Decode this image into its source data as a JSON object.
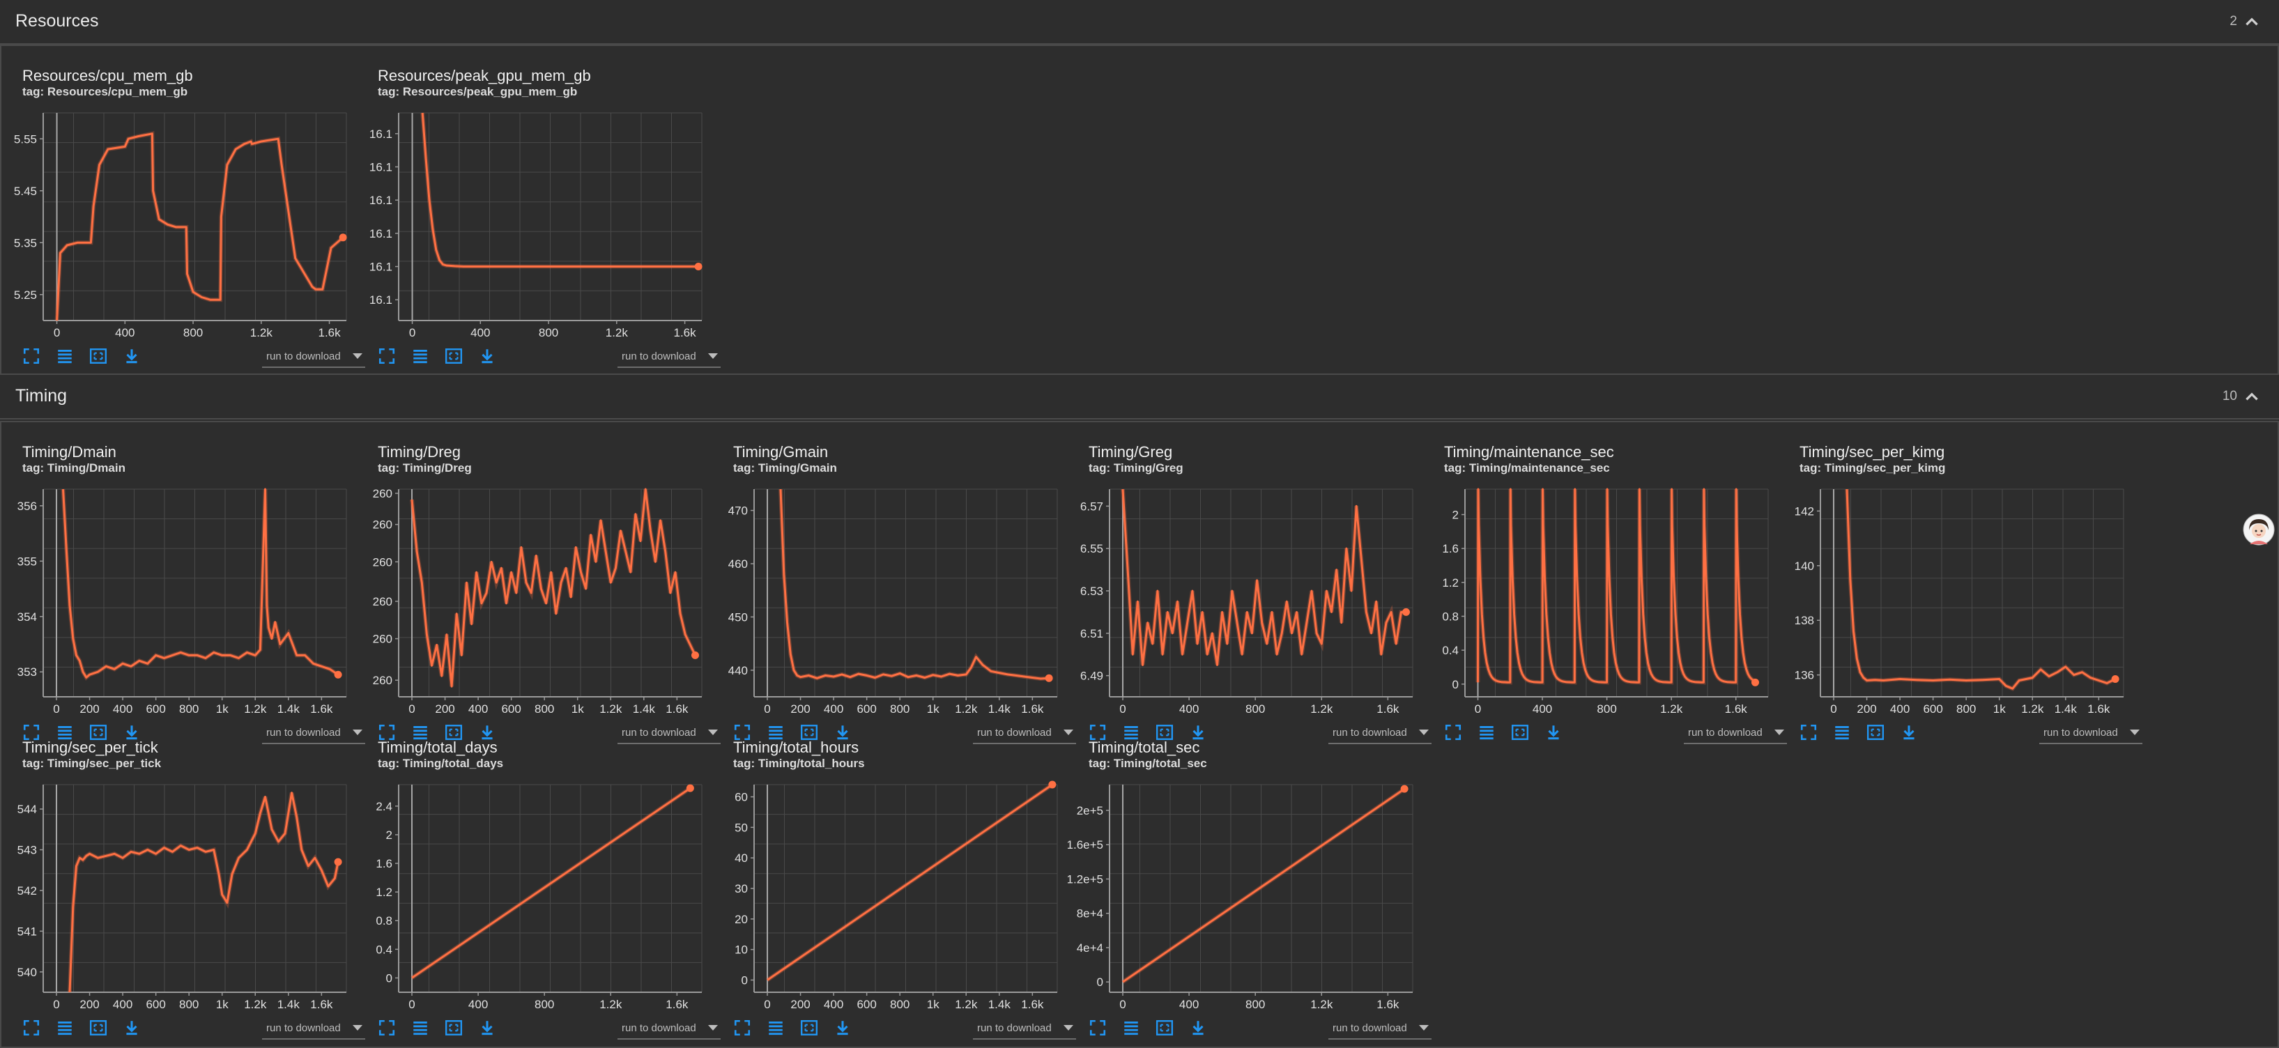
{
  "accent_color": "#ff7043",
  "icon_color": "#2196f3",
  "sections": [
    {
      "title": "Resources",
      "count": "2",
      "toggle_icon": "chevron-up-icon"
    },
    {
      "title": "Timing",
      "count": "10",
      "toggle_icon": "chevron-up-icon"
    }
  ],
  "card_controls": {
    "icons": [
      "fullscreen-icon",
      "list-icon",
      "fit-domain-icon",
      "download-icon"
    ],
    "download_placeholder": "run to download"
  },
  "cards": [
    {
      "title": "Resources/cpu_mem_gb",
      "tag": "tag: Resources/cpu_mem_gb"
    },
    {
      "title": "Resources/peak_gpu_mem_gb",
      "tag": "tag: Resources/peak_gpu_mem_gb"
    },
    {
      "title": "Timing/Dmain",
      "tag": "tag: Timing/Dmain"
    },
    {
      "title": "Timing/Dreg",
      "tag": "tag: Timing/Dreg"
    },
    {
      "title": "Timing/Gmain",
      "tag": "tag: Timing/Gmain"
    },
    {
      "title": "Timing/Greg",
      "tag": "tag: Timing/Greg"
    },
    {
      "title": "Timing/maintenance_sec",
      "tag": "tag: Timing/maintenance_sec"
    },
    {
      "title": "Timing/sec_per_kimg",
      "tag": "tag: Timing/sec_per_kimg"
    },
    {
      "title": "Timing/sec_per_tick",
      "tag": "tag: Timing/sec_per_tick"
    },
    {
      "title": "Timing/total_days",
      "tag": "tag: Timing/total_days"
    },
    {
      "title": "Timing/total_hours",
      "tag": "tag: Timing/total_hours"
    },
    {
      "title": "Timing/total_sec",
      "tag": "tag: Timing/total_sec"
    }
  ],
  "chart_data": [
    {
      "type": "line",
      "name": "Resources/cpu_mem_gb",
      "xlim": [
        -80,
        1700
      ],
      "ylim": [
        5.2,
        5.6
      ],
      "xticks": [
        "0",
        "400",
        "800",
        "1.2k",
        "1.6k"
      ],
      "xtick_values": [
        0,
        400,
        800,
        1200,
        1600
      ],
      "yticks": [
        "5.25",
        "5.35",
        "5.45",
        "5.55"
      ],
      "ytick_values": [
        5.25,
        5.35,
        5.45,
        5.55
      ],
      "x": [
        0,
        20,
        60,
        120,
        200,
        215,
        250,
        300,
        400,
        420,
        480,
        560,
        565,
        600,
        650,
        700,
        760,
        765,
        800,
        850,
        900,
        960,
        965,
        1000,
        1050,
        1100,
        1140,
        1145,
        1200,
        1260,
        1300,
        1320,
        1400,
        1500,
        1520,
        1560,
        1610,
        1680
      ],
      "y": [
        5.2,
        5.33,
        5.345,
        5.35,
        5.35,
        5.42,
        5.5,
        5.53,
        5.535,
        5.55,
        5.555,
        5.56,
        5.45,
        5.395,
        5.385,
        5.38,
        5.38,
        5.29,
        5.255,
        5.245,
        5.24,
        5.24,
        5.4,
        5.5,
        5.53,
        5.54,
        5.545,
        5.54,
        5.545,
        5.548,
        5.55,
        5.5,
        5.32,
        5.265,
        5.26,
        5.26,
        5.34,
        5.36
      ]
    },
    {
      "type": "line",
      "name": "Resources/peak_gpu_mem_gb",
      "xlim": [
        -80,
        1700
      ],
      "ylim": [
        0,
        1
      ],
      "xticks": [
        "0",
        "400",
        "800",
        "1.2k",
        "1.6k"
      ],
      "xtick_values": [
        0,
        400,
        800,
        1200,
        1600
      ],
      "yticks": [
        "16.1",
        "16.1",
        "16.1",
        "16.1",
        "16.1",
        "16.1"
      ],
      "ytick_values": [
        0.1,
        0.26,
        0.42,
        0.58,
        0.74,
        0.9
      ],
      "x": [
        60,
        80,
        100,
        120,
        140,
        160,
        180,
        200,
        250,
        300,
        400,
        800,
        1200,
        1600,
        1680
      ],
      "y": [
        1.0,
        0.78,
        0.58,
        0.44,
        0.34,
        0.29,
        0.27,
        0.265,
        0.262,
        0.26,
        0.26,
        0.26,
        0.26,
        0.26,
        0.26
      ]
    },
    {
      "type": "line",
      "name": "Timing/Dmain",
      "xlim": [
        -80,
        1750
      ],
      "ylim": [
        352.55,
        356.3
      ],
      "xticks": [
        "0",
        "200",
        "400",
        "600",
        "800",
        "1k",
        "1.2k",
        "1.4k",
        "1.6k"
      ],
      "xtick_values": [
        0,
        200,
        400,
        600,
        800,
        1000,
        1200,
        1400,
        1600
      ],
      "yticks": [
        "353",
        "354",
        "355",
        "356"
      ],
      "ytick_values": [
        353,
        354,
        355,
        356
      ],
      "x": [
        40,
        60,
        80,
        100,
        120,
        140,
        160,
        180,
        200,
        250,
        300,
        350,
        400,
        450,
        500,
        550,
        600,
        650,
        700,
        750,
        800,
        850,
        900,
        950,
        1000,
        1050,
        1100,
        1150,
        1200,
        1230,
        1260,
        1270,
        1280,
        1300,
        1320,
        1350,
        1400,
        1450,
        1500,
        1550,
        1600,
        1650,
        1700
      ],
      "y": [
        356.3,
        355.2,
        354.2,
        353.6,
        353.3,
        353.2,
        353.0,
        352.9,
        352.95,
        353.0,
        353.1,
        353.05,
        353.15,
        353.1,
        353.2,
        353.15,
        353.3,
        353.25,
        353.3,
        353.35,
        353.3,
        353.3,
        353.25,
        353.35,
        353.3,
        353.3,
        353.25,
        353.35,
        353.3,
        353.4,
        356.3,
        354.2,
        353.8,
        353.6,
        353.9,
        353.5,
        353.7,
        353.3,
        353.3,
        353.15,
        353.1,
        353.05,
        352.95
      ]
    },
    {
      "type": "line",
      "name": "Timing/Dreg",
      "xlim": [
        -80,
        1750
      ],
      "ylim": [
        0,
        1
      ],
      "xticks": [
        "0",
        "200",
        "400",
        "600",
        "800",
        "1k",
        "1.2k",
        "1.4k",
        "1.6k"
      ],
      "xtick_values": [
        0,
        200,
        400,
        600,
        800,
        1000,
        1200,
        1400,
        1600
      ],
      "yticks": [
        "260",
        "260",
        "260",
        "260",
        "260",
        "260"
      ],
      "ytick_values": [
        0.08,
        0.28,
        0.46,
        0.65,
        0.83,
        0.98
      ],
      "x": [
        0,
        30,
        60,
        90,
        120,
        150,
        180,
        210,
        240,
        270,
        300,
        330,
        360,
        390,
        420,
        450,
        480,
        510,
        540,
        570,
        600,
        630,
        660,
        690,
        720,
        750,
        780,
        810,
        840,
        870,
        900,
        930,
        960,
        990,
        1020,
        1050,
        1080,
        1110,
        1140,
        1170,
        1200,
        1230,
        1260,
        1290,
        1320,
        1350,
        1380,
        1410,
        1440,
        1470,
        1500,
        1530,
        1560,
        1590,
        1620,
        1650,
        1680,
        1710
      ],
      "y": [
        0.95,
        0.7,
        0.55,
        0.3,
        0.15,
        0.25,
        0.1,
        0.3,
        0.05,
        0.4,
        0.2,
        0.55,
        0.35,
        0.6,
        0.45,
        0.5,
        0.65,
        0.55,
        0.62,
        0.45,
        0.6,
        0.5,
        0.72,
        0.55,
        0.5,
        0.68,
        0.52,
        0.45,
        0.6,
        0.4,
        0.55,
        0.62,
        0.48,
        0.72,
        0.6,
        0.52,
        0.78,
        0.65,
        0.85,
        0.7,
        0.55,
        0.62,
        0.8,
        0.7,
        0.6,
        0.88,
        0.75,
        1.0,
        0.8,
        0.65,
        0.85,
        0.7,
        0.5,
        0.6,
        0.4,
        0.3,
        0.25,
        0.2
      ]
    },
    {
      "type": "line",
      "name": "Timing/Gmain",
      "xlim": [
        -80,
        1750
      ],
      "ylim": [
        435,
        474
      ],
      "xticks": [
        "0",
        "200",
        "400",
        "600",
        "800",
        "1k",
        "1.2k",
        "1.4k",
        "1.6k"
      ],
      "xtick_values": [
        0,
        200,
        400,
        600,
        800,
        1000,
        1200,
        1400,
        1600
      ],
      "yticks": [
        "440",
        "450",
        "460",
        "470"
      ],
      "ytick_values": [
        440,
        450,
        460,
        470
      ],
      "x": [
        80,
        100,
        120,
        140,
        160,
        180,
        200,
        250,
        300,
        350,
        400,
        450,
        500,
        550,
        600,
        650,
        700,
        750,
        800,
        850,
        900,
        950,
        1000,
        1050,
        1100,
        1150,
        1200,
        1230,
        1260,
        1300,
        1350,
        1400,
        1450,
        1500,
        1550,
        1600,
        1650,
        1700
      ],
      "y": [
        474,
        458,
        449,
        443,
        440,
        439,
        438.7,
        439,
        438.5,
        439,
        438.8,
        439.2,
        438.7,
        439.3,
        439,
        438.6,
        439.2,
        438.9,
        439.4,
        438.7,
        439,
        438.6,
        439.1,
        438.8,
        439.3,
        439,
        439.2,
        440.5,
        442.5,
        441,
        439.8,
        439.5,
        439.2,
        439,
        438.8,
        438.6,
        438.4,
        438.5
      ]
    },
    {
      "type": "line",
      "name": "Timing/Greg",
      "xlim": [
        -80,
        1750
      ],
      "ylim": [
        6.48,
        6.578
      ],
      "xticks": [
        "0",
        "400",
        "800",
        "1.2k",
        "1.6k"
      ],
      "xtick_values": [
        0,
        400,
        800,
        1200,
        1600
      ],
      "yticks": [
        "6.49",
        "6.51",
        "6.53",
        "6.55",
        "6.57"
      ],
      "ytick_values": [
        6.49,
        6.51,
        6.53,
        6.55,
        6.57
      ],
      "x": [
        0,
        30,
        60,
        90,
        120,
        150,
        180,
        210,
        240,
        270,
        300,
        330,
        360,
        390,
        420,
        450,
        480,
        510,
        540,
        570,
        600,
        630,
        660,
        690,
        720,
        750,
        780,
        810,
        840,
        870,
        900,
        930,
        960,
        990,
        1020,
        1050,
        1080,
        1110,
        1140,
        1170,
        1200,
        1230,
        1260,
        1290,
        1320,
        1350,
        1380,
        1410,
        1440,
        1470,
        1500,
        1530,
        1560,
        1590,
        1620,
        1650,
        1680,
        1710
      ],
      "y": [
        6.578,
        6.54,
        6.5,
        6.525,
        6.495,
        6.515,
        6.505,
        6.53,
        6.5,
        6.52,
        6.51,
        6.525,
        6.5,
        6.515,
        6.53,
        6.505,
        6.52,
        6.5,
        6.51,
        6.495,
        6.52,
        6.505,
        6.53,
        6.515,
        6.5,
        6.52,
        6.51,
        6.535,
        6.515,
        6.505,
        6.52,
        6.5,
        6.51,
        6.525,
        6.51,
        6.52,
        6.5,
        6.515,
        6.53,
        6.51,
        6.505,
        6.53,
        6.52,
        6.54,
        6.515,
        6.55,
        6.53,
        6.57,
        6.545,
        6.52,
        6.51,
        6.525,
        6.5,
        6.515,
        6.52,
        6.505,
        6.52,
        6.52
      ]
    },
    {
      "type": "line",
      "name": "Timing/maintenance_sec",
      "xlim": [
        -80,
        1800
      ],
      "ylim": [
        -0.15,
        2.3
      ],
      "xticks": [
        "0",
        "400",
        "800",
        "1.2k",
        "1.6k"
      ],
      "xtick_values": [
        0,
        400,
        800,
        1200,
        1600
      ],
      "yticks": [
        "0",
        "0.4",
        "0.8",
        "1.2",
        "1.6",
        "2"
      ],
      "ytick_values": [
        0,
        0.4,
        0.8,
        1.2,
        1.6,
        2
      ],
      "spike_x": [
        0,
        200,
        400,
        600,
        800,
        1000,
        1200,
        1400,
        1600
      ],
      "baseline": 0.02,
      "last_x": 1720
    },
    {
      "type": "line",
      "name": "Timing/sec_per_kimg",
      "xlim": [
        -80,
        1750
      ],
      "ylim": [
        135.2,
        142.8
      ],
      "xticks": [
        "0",
        "200",
        "400",
        "600",
        "800",
        "1k",
        "1.2k",
        "1.4k",
        "1.6k"
      ],
      "xtick_values": [
        0,
        200,
        400,
        600,
        800,
        1000,
        1200,
        1400,
        1600
      ],
      "yticks": [
        "136",
        "138",
        "140",
        "142"
      ],
      "ytick_values": [
        136,
        138,
        140,
        142
      ],
      "x": [
        80,
        100,
        120,
        140,
        160,
        180,
        200,
        250,
        300,
        400,
        500,
        600,
        700,
        800,
        900,
        1000,
        1040,
        1080,
        1120,
        1200,
        1250,
        1300,
        1350,
        1400,
        1450,
        1500,
        1550,
        1600,
        1650,
        1700
      ],
      "y": [
        142.8,
        139.5,
        137.6,
        136.6,
        136.1,
        135.9,
        135.8,
        135.82,
        135.8,
        135.85,
        135.82,
        135.8,
        135.83,
        135.8,
        135.82,
        135.85,
        135.6,
        135.5,
        135.8,
        135.9,
        136.2,
        135.95,
        136.1,
        136.3,
        136.0,
        136.1,
        135.9,
        135.8,
        135.7,
        135.85
      ]
    },
    {
      "type": "line",
      "name": "Timing/sec_per_tick",
      "xlim": [
        -80,
        1750
      ],
      "ylim": [
        539.5,
        544.6
      ],
      "xticks": [
        "0",
        "200",
        "400",
        "600",
        "800",
        "1k",
        "1.2k",
        "1.4k",
        "1.6k"
      ],
      "xtick_values": [
        0,
        200,
        400,
        600,
        800,
        1000,
        1200,
        1400,
        1600
      ],
      "yticks": [
        "540",
        "541",
        "542",
        "543",
        "544"
      ],
      "ytick_values": [
        540,
        541,
        542,
        543,
        544
      ],
      "x": [
        80,
        100,
        120,
        140,
        160,
        180,
        200,
        250,
        300,
        350,
        400,
        450,
        500,
        550,
        600,
        650,
        700,
        750,
        800,
        850,
        900,
        950,
        980,
        1000,
        1030,
        1060,
        1100,
        1150,
        1200,
        1230,
        1260,
        1300,
        1340,
        1380,
        1420,
        1450,
        1480,
        1520,
        1560,
        1600,
        1640,
        1680,
        1700
      ],
      "y": [
        539.5,
        541.6,
        542.6,
        542.8,
        542.75,
        542.85,
        542.9,
        542.8,
        542.85,
        542.9,
        542.8,
        542.95,
        542.9,
        543.0,
        542.9,
        543.05,
        542.95,
        543.1,
        543.0,
        543.05,
        542.95,
        543.0,
        542.4,
        541.9,
        541.7,
        542.4,
        542.8,
        543.0,
        543.4,
        543.9,
        544.3,
        543.5,
        543.2,
        543.4,
        544.4,
        543.8,
        543.0,
        542.6,
        542.8,
        542.5,
        542.1,
        542.3,
        542.7
      ]
    },
    {
      "type": "line",
      "name": "Timing/total_days",
      "xlim": [
        -80,
        1750
      ],
      "ylim": [
        -0.2,
        2.7
      ],
      "xticks": [
        "0",
        "400",
        "800",
        "1.2k",
        "1.6k"
      ],
      "xtick_values": [
        0,
        400,
        800,
        1200,
        1600
      ],
      "yticks": [
        "0",
        "0.4",
        "0.8",
        "1.2",
        "1.6",
        "2",
        "2.4"
      ],
      "ytick_values": [
        0,
        0.4,
        0.8,
        1.2,
        1.6,
        2,
        2.4
      ],
      "x": [
        0,
        1680
      ],
      "y": [
        0,
        2.65
      ]
    },
    {
      "type": "line",
      "name": "Timing/total_hours",
      "xlim": [
        -80,
        1750
      ],
      "ylim": [
        -4,
        64
      ],
      "xticks": [
        "0",
        "200",
        "400",
        "600",
        "800",
        "1k",
        "1.2k",
        "1.4k",
        "1.6k"
      ],
      "xtick_values": [
        0,
        200,
        400,
        600,
        800,
        1000,
        1200,
        1400,
        1600
      ],
      "yticks": [
        "0",
        "10",
        "20",
        "30",
        "40",
        "50",
        "60"
      ],
      "ytick_values": [
        0,
        10,
        20,
        30,
        40,
        50,
        60
      ],
      "x": [
        0,
        1720
      ],
      "y": [
        0,
        64
      ]
    },
    {
      "type": "line",
      "name": "Timing/total_sec",
      "xlim": [
        -80,
        1750
      ],
      "ylim": [
        -12000,
        230000
      ],
      "xticks": [
        "0",
        "400",
        "800",
        "1.2k",
        "1.6k"
      ],
      "xtick_values": [
        0,
        400,
        800,
        1200,
        1600
      ],
      "yticks": [
        "0",
        "4e+4",
        "8e+4",
        "1.2e+5",
        "1.6e+5",
        "2e+5"
      ],
      "ytick_values": [
        0,
        40000,
        80000,
        120000,
        160000,
        200000
      ],
      "x": [
        0,
        1700
      ],
      "y": [
        0,
        225000
      ]
    }
  ]
}
